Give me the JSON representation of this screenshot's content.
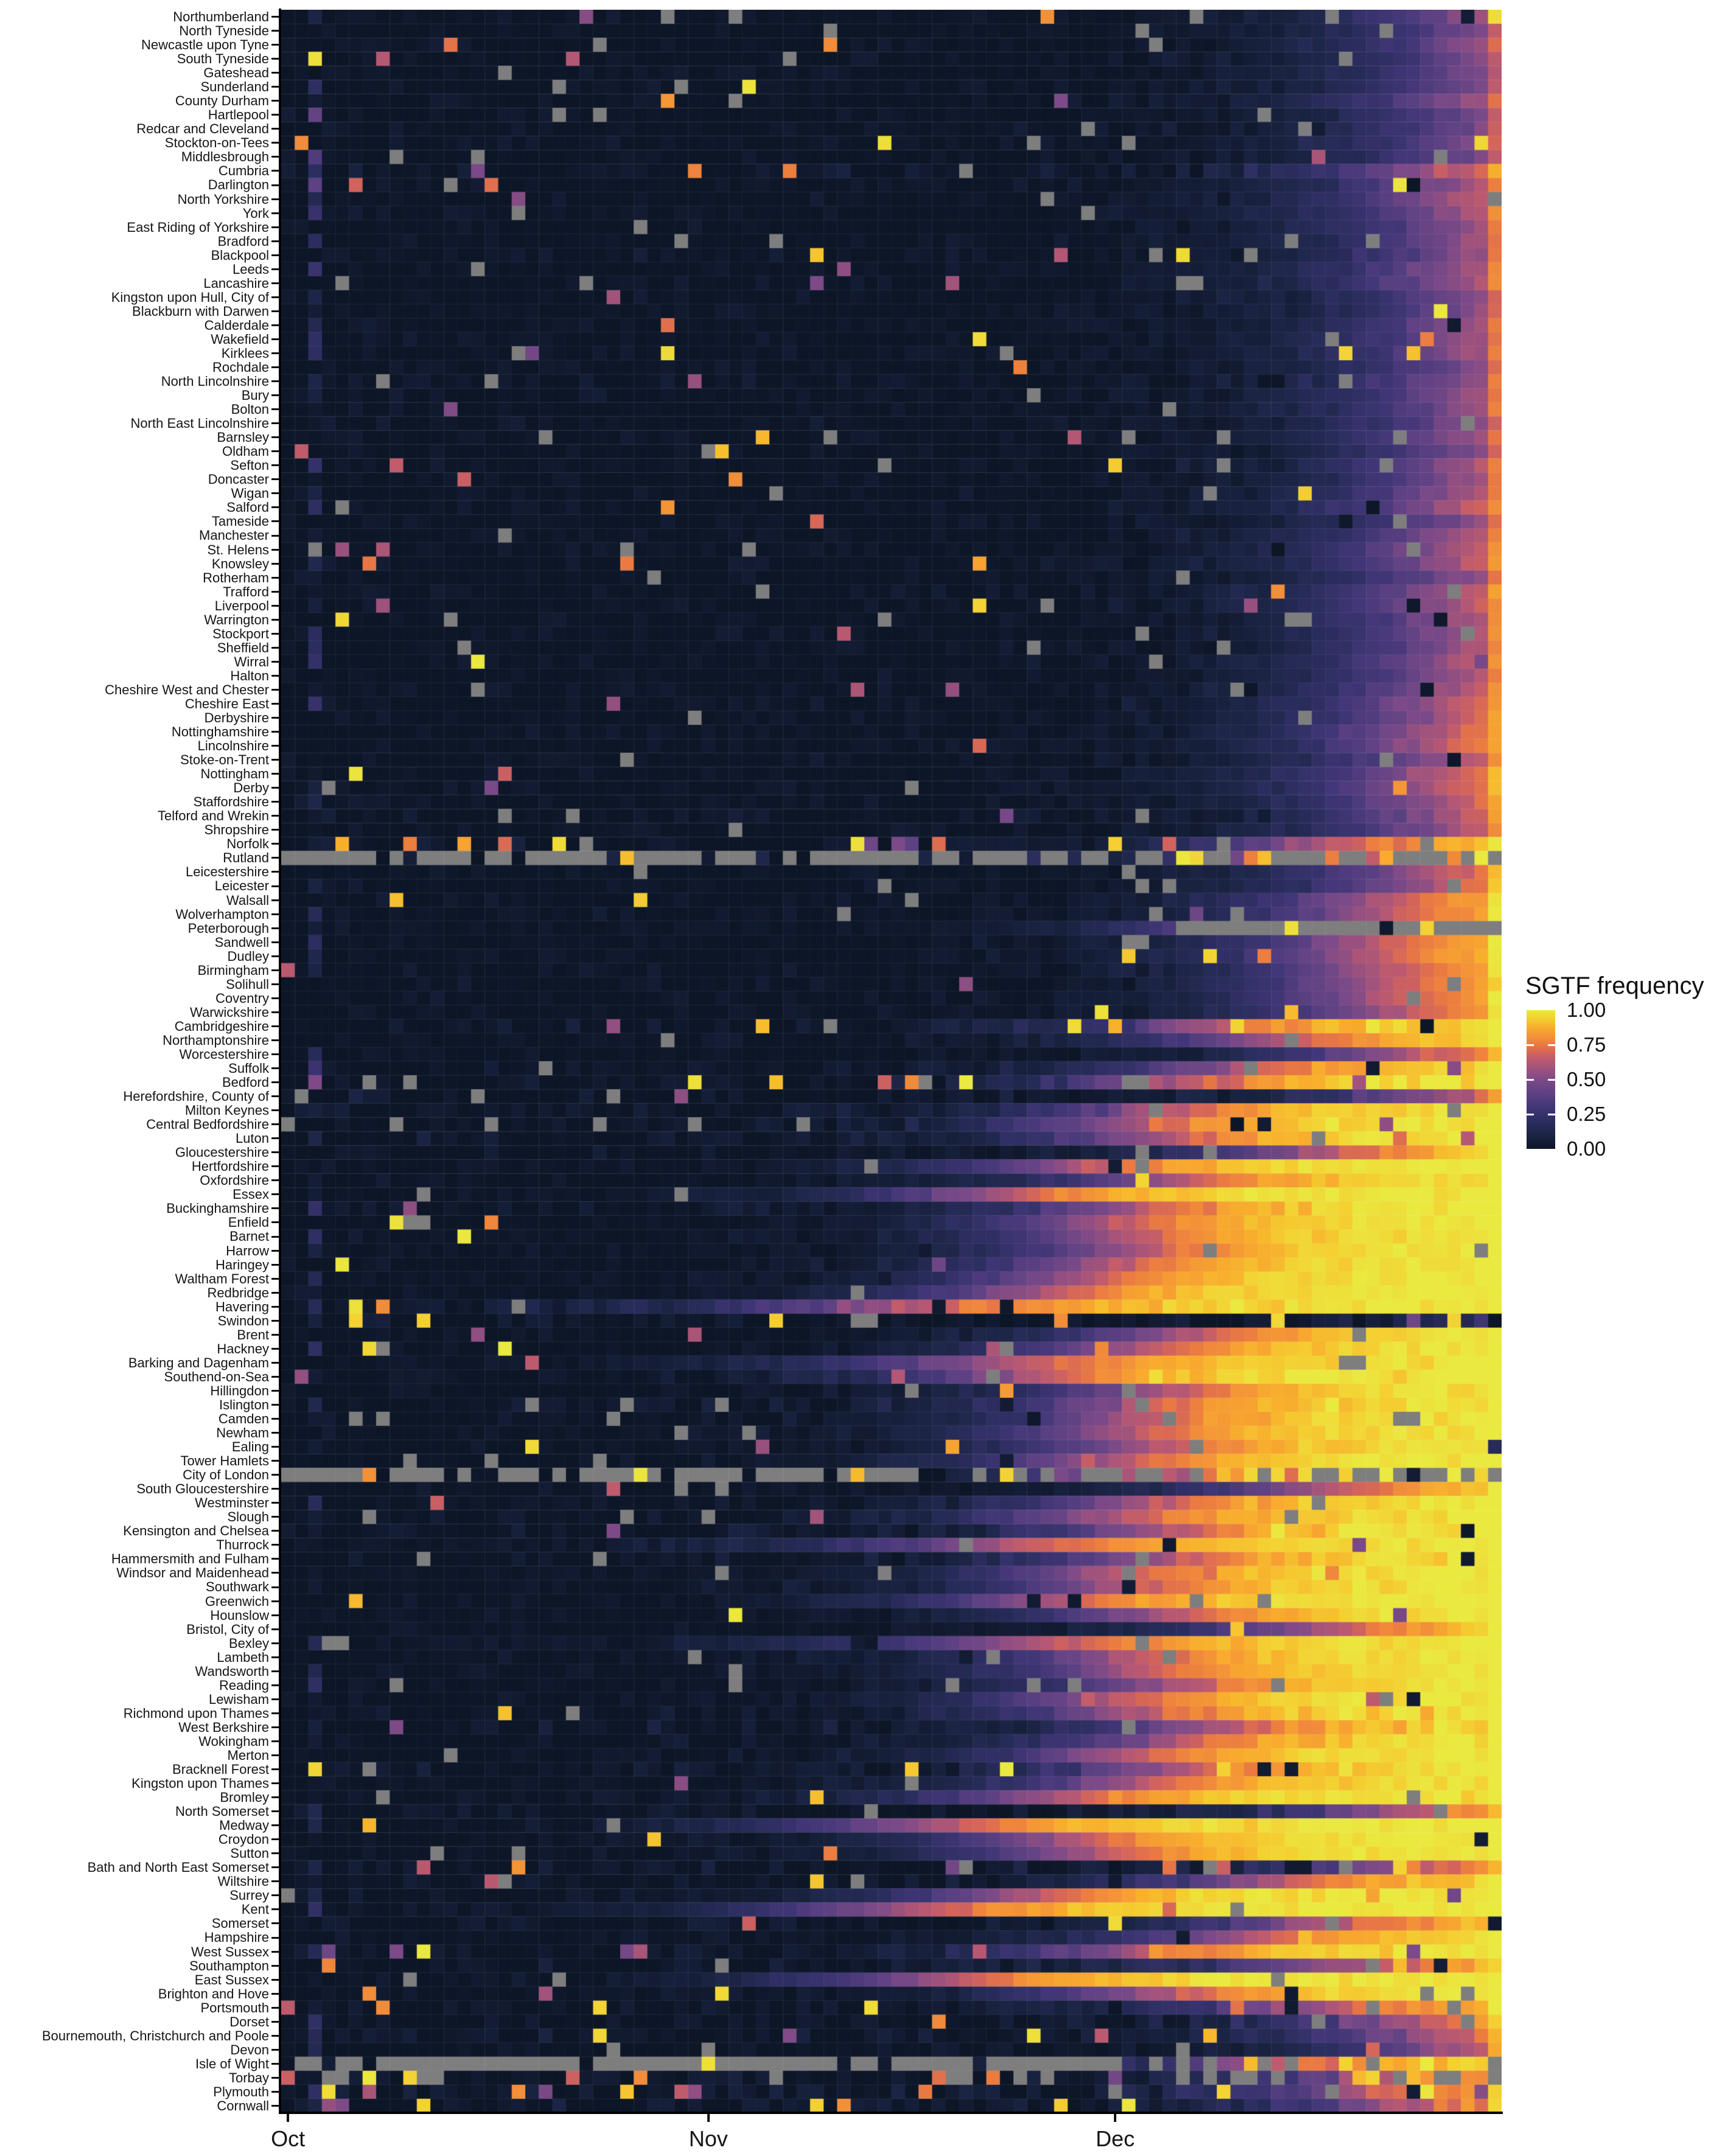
{
  "figure": {
    "background": "#ffffff",
    "text_color": "#161616"
  },
  "chart_data": {
    "type": "heatmap",
    "legend_title": "SGTF frequency",
    "x": {
      "tick_labels": [
        "Oct",
        "Nov",
        "Dec"
      ],
      "tick_day_index": [
        0,
        31,
        61
      ],
      "n_days": 90,
      "noisy_day": 2
    },
    "colorbar": {
      "ticks": [
        {
          "label": "1.00",
          "value": 1.0
        },
        {
          "label": "0.75",
          "value": 0.75
        },
        {
          "label": "0.50",
          "value": 0.5
        },
        {
          "label": "0.25",
          "value": 0.25
        },
        {
          "label": "0.00",
          "value": 0.0
        }
      ],
      "stops": [
        {
          "p": 0.0,
          "color": "#0d1627"
        },
        {
          "p": 0.1,
          "color": "#1b2444"
        },
        {
          "p": 0.2,
          "color": "#2c2e60"
        },
        {
          "p": 0.3,
          "color": "#413677"
        },
        {
          "p": 0.4,
          "color": "#5d4183"
        },
        {
          "p": 0.5,
          "color": "#7d4a87"
        },
        {
          "p": 0.56,
          "color": "#97507f"
        },
        {
          "p": 0.63,
          "color": "#b65873"
        },
        {
          "p": 0.69,
          "color": "#d2635c"
        },
        {
          "p": 0.75,
          "color": "#ea7a41"
        },
        {
          "p": 0.81,
          "color": "#f39238"
        },
        {
          "p": 0.875,
          "color": "#f8ad2d"
        },
        {
          "p": 0.94,
          "color": "#f4cf31"
        },
        {
          "p": 1.0,
          "color": "#eae93f"
        }
      ],
      "na_color": "#7e7e7e"
    },
    "value_range": [
      0,
      1
    ],
    "defaults": {
      "k": 6,
      "n": 0.06,
      "o": 0.012,
      "b": 0.012,
      "na": [
        0.012,
        0.025
      ]
    },
    "rows": [
      {
        "name": "Northumberland",
        "m": 87,
        "spots": [
          [
            89,
            0.97
          ]
        ]
      },
      {
        "name": "North Tyneside",
        "m": 88
      },
      {
        "name": "Newcastle upon Tyne",
        "m": 87
      },
      {
        "name": "South Tyneside",
        "m": 88
      },
      {
        "name": "Gateshead",
        "m": 88
      },
      {
        "name": "Sunderland",
        "m": 88
      },
      {
        "name": "County Durham",
        "m": 86
      },
      {
        "name": "Hartlepool",
        "m": 88,
        "na": [
          0.04,
          0.03
        ],
        "spots": [
          [
            2,
            0.42
          ]
        ]
      },
      {
        "name": "Redcar and Cleveland",
        "m": 88
      },
      {
        "name": "Stockton-on-Tees",
        "m": 87
      },
      {
        "name": "Middlesbrough",
        "m": 88,
        "spots": [
          [
            2,
            0.35
          ]
        ]
      },
      {
        "name": "Cumbria",
        "m": 83,
        "n": 0.1,
        "o": 0.05
      },
      {
        "name": "Darlington",
        "m": 85,
        "o": 0.04,
        "b": 0.03,
        "spots": [
          [
            2,
            0.4
          ]
        ]
      },
      {
        "name": "North Yorkshire",
        "m": 84
      },
      {
        "name": "York",
        "m": 85
      },
      {
        "name": "East Riding of Yorkshire",
        "m": 86
      },
      {
        "name": "Bradford",
        "m": 86
      },
      {
        "name": "Blackpool",
        "m": 86,
        "n": 0.08
      },
      {
        "name": "Leeds",
        "m": 85
      },
      {
        "name": "Lancashire",
        "m": 85,
        "na": [
          0.012,
          0.05
        ]
      },
      {
        "name": "Kingston upon Hull, City of",
        "m": 87,
        "na": [
          0.012,
          0.05
        ]
      },
      {
        "name": "Blackburn with Darwen",
        "m": 87,
        "n": 0.08
      },
      {
        "name": "Calderdale",
        "m": 86
      },
      {
        "name": "Wakefield",
        "m": 86
      },
      {
        "name": "Kirklees",
        "m": 86
      },
      {
        "name": "Rochdale",
        "m": 87
      },
      {
        "name": "North Lincolnshire",
        "m": 86,
        "n": 0.08
      },
      {
        "name": "Bury",
        "m": 86
      },
      {
        "name": "Bolton",
        "m": 86
      },
      {
        "name": "North East Lincolnshire",
        "m": 87,
        "n": 0.08
      },
      {
        "name": "Barnsley",
        "m": 86
      },
      {
        "name": "Oldham",
        "m": 87
      },
      {
        "name": "Sefton",
        "m": 85
      },
      {
        "name": "Doncaster",
        "m": 86
      },
      {
        "name": "Wigan",
        "m": 85
      },
      {
        "name": "Salford",
        "m": 84
      },
      {
        "name": "Tameside",
        "m": 87
      },
      {
        "name": "Manchester",
        "m": 85
      },
      {
        "name": "St. Helens",
        "m": 84
      },
      {
        "name": "Knowsley",
        "m": 84
      },
      {
        "name": "Rotherham",
        "m": 86
      },
      {
        "name": "Trafford",
        "m": 84
      },
      {
        "name": "Liverpool",
        "m": 84
      },
      {
        "name": "Warrington",
        "m": 85
      },
      {
        "name": "Stockport",
        "m": 85
      },
      {
        "name": "Sheffield",
        "m": 85
      },
      {
        "name": "Wirral",
        "m": 84
      },
      {
        "name": "Halton",
        "m": 85
      },
      {
        "name": "Cheshire West and Chester",
        "m": 84
      },
      {
        "name": "Cheshire East",
        "m": 83
      },
      {
        "name": "Derbyshire",
        "m": 83
      },
      {
        "name": "Nottinghamshire",
        "m": 82
      },
      {
        "name": "Lincolnshire",
        "m": 82
      },
      {
        "name": "Stoke-on-Trent",
        "m": 84
      },
      {
        "name": "Nottingham",
        "m": 82
      },
      {
        "name": "Derby",
        "m": 82
      },
      {
        "name": "Staffordshire",
        "m": 83
      },
      {
        "name": "Telford and Wrekin",
        "m": 84,
        "n": 0.08
      },
      {
        "name": "Shropshire",
        "m": 84
      },
      {
        "name": "Norfolk",
        "m": 74,
        "n": 0.1,
        "o": 0.06,
        "spots": [
          [
            42,
            0.98
          ],
          [
            43,
            0.45
          ],
          [
            45,
            0.5
          ],
          [
            46,
            0.4
          ]
        ]
      },
      {
        "name": "Rutland",
        "m": 74,
        "n": 0.22,
        "o": 0.1,
        "na": [
          0.75,
          0.5
        ]
      },
      {
        "name": "Leicestershire",
        "m": 82
      },
      {
        "name": "Leicester",
        "m": 82
      },
      {
        "name": "Walsall",
        "m": 78,
        "na": [
          0.012,
          0.06
        ]
      },
      {
        "name": "Wolverhampton",
        "m": 78,
        "na": [
          0.012,
          0.06
        ]
      },
      {
        "name": "Peterborough",
        "m": 70,
        "nr": [
          66,
          89
        ],
        "spots": [
          [
            74,
            0.98
          ],
          [
            81,
            0.02
          ],
          [
            84,
            0.95
          ]
        ]
      },
      {
        "name": "Sandwell",
        "m": 77,
        "na": [
          0.012,
          0.05
        ]
      },
      {
        "name": "Dudley",
        "m": 77
      },
      {
        "name": "Birmingham",
        "m": 78
      },
      {
        "name": "Solihull",
        "m": 78
      },
      {
        "name": "Coventry",
        "m": 78
      },
      {
        "name": "Warwickshire",
        "m": 79
      },
      {
        "name": "Cambridgeshire",
        "m": 66,
        "n": 0.12,
        "o": 0.07,
        "spots": [
          [
            24,
            0.55
          ],
          [
            70,
            0.95
          ]
        ]
      },
      {
        "name": "Northamptonshire",
        "m": 70
      },
      {
        "name": "Worcestershire",
        "m": 80
      },
      {
        "name": "Suffolk",
        "m": 68,
        "n": 0.09,
        "o": 0.04
      },
      {
        "name": "Bedford",
        "m": 63,
        "n": 0.12,
        "o": 0.07,
        "na": [
          0.08,
          0.03
        ],
        "spots": [
          [
            2,
            0.5
          ]
        ]
      },
      {
        "name": "Herefordshire, County of",
        "m": 83,
        "n": 0.12,
        "na": [
          0.06,
          0.04
        ]
      },
      {
        "name": "Milton Keynes",
        "m": 62,
        "n": 0.09
      },
      {
        "name": "Central Bedfordshire",
        "m": 60,
        "n": 0.09,
        "na": [
          0.05,
          0.02
        ]
      },
      {
        "name": "Luton",
        "m": 62,
        "n": 0.1
      },
      {
        "name": "Gloucestershire",
        "m": 74,
        "n": 0.08,
        "o": 0.03
      },
      {
        "name": "Hertfordshire",
        "m": 56
      },
      {
        "name": "Oxfordshire",
        "m": 63
      },
      {
        "name": "Essex",
        "m": 50
      },
      {
        "name": "Buckinghamshire",
        "m": 60,
        "n": 0.09
      },
      {
        "name": "Enfield",
        "m": 58
      },
      {
        "name": "Barnet",
        "m": 59
      },
      {
        "name": "Harrow",
        "m": 60
      },
      {
        "name": "Haringey",
        "m": 58
      },
      {
        "name": "Waltham Forest",
        "m": 56
      },
      {
        "name": "Redbridge",
        "m": 53
      },
      {
        "name": "Havering",
        "m": 42,
        "k": 9,
        "n": 0.1,
        "b": 0.03
      },
      {
        "name": "Swindon",
        "m": 97,
        "k": 7,
        "n": 0.12,
        "o": 0.04,
        "b": 0.04,
        "na": [
          0.06,
          0.02
        ],
        "spots": [
          [
            86,
            0.95
          ],
          [
            89,
            0
          ]
        ]
      },
      {
        "name": "Brent",
        "m": 64
      },
      {
        "name": "Hackney",
        "m": 60,
        "o": 0.03,
        "spots": [
          [
            16,
            1
          ]
        ]
      },
      {
        "name": "Barking and Dagenham",
        "m": 50,
        "k": 8
      },
      {
        "name": "Southend-on-Sea",
        "m": 52,
        "n": 0.09,
        "o": 0.04,
        "spots": [
          [
            1,
            0.55
          ]
        ]
      },
      {
        "name": "Hillingdon",
        "m": 62
      },
      {
        "name": "Islington",
        "m": 60,
        "n": 0.09
      },
      {
        "name": "Camden",
        "m": 60,
        "n": 0.09,
        "na": [
          0.04,
          0.025
        ]
      },
      {
        "name": "Newham",
        "m": 59
      },
      {
        "name": "Ealing",
        "m": 61
      },
      {
        "name": "Tower Hamlets",
        "m": 58
      },
      {
        "name": "City of London",
        "m": 60,
        "n": 0.25,
        "o": 0.12,
        "na": [
          0.72,
          0.5
        ],
        "spots": [
          [
            42,
            0.9
          ],
          [
            53,
            0.95
          ]
        ]
      },
      {
        "name": "South Gloucestershire",
        "m": 74
      },
      {
        "name": "Westminster",
        "m": 61,
        "n": 0.09
      },
      {
        "name": "Slough",
        "m": 58,
        "n": 0.09
      },
      {
        "name": "Kensington and Chelsea",
        "m": 62,
        "n": 0.1,
        "spots": [
          [
            24,
            0.5
          ]
        ]
      },
      {
        "name": "Thurrock",
        "m": 50,
        "k": 8
      },
      {
        "name": "Hammersmith and Fulham",
        "m": 62,
        "n": 0.09
      },
      {
        "name": "Windsor and Maidenhead",
        "m": 58
      },
      {
        "name": "Southwark",
        "m": 59
      },
      {
        "name": "Greenwich",
        "m": 54
      },
      {
        "name": "Hounslow",
        "m": 62
      },
      {
        "name": "Bristol, City of",
        "m": 74
      },
      {
        "name": "Bexley",
        "m": 52,
        "k": 8
      },
      {
        "name": "Lambeth",
        "m": 59
      },
      {
        "name": "Wandsworth",
        "m": 60
      },
      {
        "name": "Reading",
        "m": 63,
        "na": [
          0.05,
          0.025
        ]
      },
      {
        "name": "Lewisham",
        "m": 58
      },
      {
        "name": "Richmond upon Thames",
        "m": 60,
        "n": 0.09
      },
      {
        "name": "West Berkshire",
        "m": 66,
        "n": 0.12,
        "o": 0.05,
        "spots": [
          [
            8,
            0.5
          ]
        ]
      },
      {
        "name": "Wokingham",
        "m": 63,
        "n": 0.09
      },
      {
        "name": "Merton",
        "m": 59
      },
      {
        "name": "Bracknell Forest",
        "m": 63,
        "n": 0.1,
        "o": 0.05,
        "spots": [
          [
            53,
            1
          ]
        ]
      },
      {
        "name": "Kingston upon Thames",
        "m": 60
      },
      {
        "name": "Bromley",
        "m": 54
      },
      {
        "name": "North Somerset",
        "m": 80,
        "n": 0.12,
        "b": 0.03,
        "na": [
          0.012,
          0.06
        ]
      },
      {
        "name": "Medway",
        "m": 45,
        "k": 7
      },
      {
        "name": "Croydon",
        "m": 55
      },
      {
        "name": "Sutton",
        "m": 57
      },
      {
        "name": "Bath and North East Somerset",
        "m": 80,
        "n": 0.12,
        "o": 0.06,
        "b": 0.04,
        "na": [
          0.012,
          0.08
        ],
        "spots": [
          [
            75,
            0.03
          ],
          [
            82,
            0.95
          ]
        ]
      },
      {
        "name": "Wiltshire",
        "m": 70,
        "n": 0.1,
        "na": [
          0.012,
          0.05
        ]
      },
      {
        "name": "Surrey",
        "m": 52
      },
      {
        "name": "Kent",
        "m": 43,
        "k": 7
      },
      {
        "name": "Somerset",
        "m": 74,
        "n": 0.1,
        "na": [
          0.012,
          0.05
        ],
        "spots": [
          [
            89,
            0.03
          ]
        ]
      },
      {
        "name": "Hampshire",
        "m": 68
      },
      {
        "name": "West Sussex",
        "m": 60,
        "n": 0.1,
        "o": 0.06,
        "spots": [
          [
            3,
            0.45
          ],
          [
            8,
            0.5
          ]
        ]
      },
      {
        "name": "Southampton",
        "m": 76,
        "k": 8,
        "n": 0.12,
        "na": [
          0.012,
          0.05
        ],
        "spots": [
          [
            82,
            0.9
          ],
          [
            85,
            0.05
          ]
        ]
      },
      {
        "name": "East Sussex",
        "m": 46,
        "k": 6.5
      },
      {
        "name": "Brighton and Hove",
        "m": 62
      },
      {
        "name": "Portsmouth",
        "m": 74,
        "k": 7,
        "n": 0.1,
        "o": 0.05,
        "b": 0.03,
        "na": [
          0.012,
          0.06
        ],
        "spots": [
          [
            43,
            0.97
          ]
        ]
      },
      {
        "name": "Dorset",
        "m": 80,
        "n": 0.1,
        "na": [
          0.012,
          0.05
        ]
      },
      {
        "name": "Bournemouth, Christchurch and Poole",
        "m": 82,
        "n": 0.1,
        "o": 0.06
      },
      {
        "name": "Devon",
        "m": 84,
        "k": 5.5,
        "n": 0.08,
        "o": 0.05,
        "spots": [
          [
            80,
            0.7
          ]
        ]
      },
      {
        "name": "Isle of Wight",
        "m": 70,
        "n": 0.15,
        "o": 0.08,
        "na": [
          0.8,
          0.25
        ],
        "spots": [
          [
            71,
            0.9
          ],
          [
            78,
            0.95
          ],
          [
            83,
            0.9
          ]
        ]
      },
      {
        "name": "Torbay",
        "m": 78,
        "n": 0.12,
        "o": 0.1,
        "na": [
          0.15,
          0.3
        ],
        "spots": [
          [
            9,
            0.95
          ],
          [
            79,
            0.9
          ],
          [
            80,
            0.95
          ],
          [
            83,
            0.9
          ]
        ]
      },
      {
        "name": "Plymouth",
        "m": 77,
        "n": 0.15,
        "o": 0.12,
        "na": [
          0.012,
          0.06
        ],
        "spots": [
          [
            3,
            0.97
          ],
          [
            6,
            0.6
          ]
        ]
      },
      {
        "name": "Cornwall",
        "m": 80,
        "n": 0.12,
        "o": 0.07,
        "na": [
          0.012,
          0.04
        ],
        "spots": [
          [
            3,
            0.55
          ],
          [
            10,
            0.95
          ]
        ]
      }
    ]
  }
}
